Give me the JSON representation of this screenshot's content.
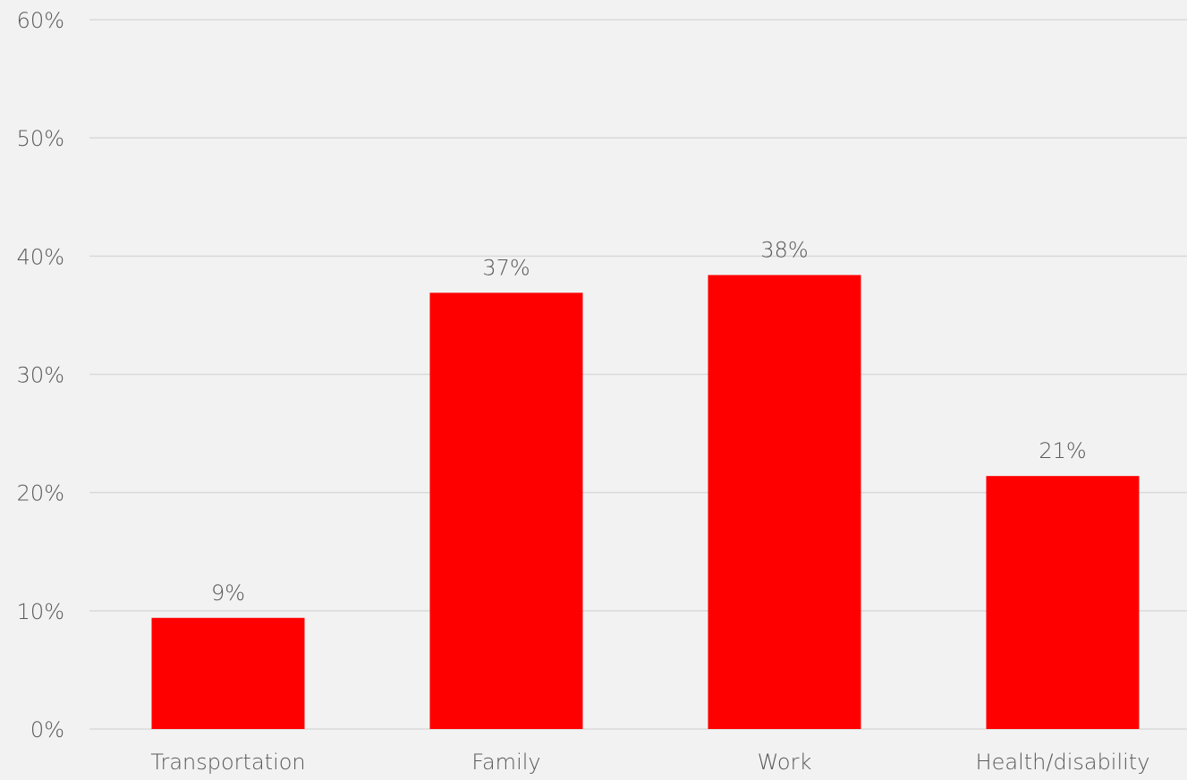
{
  "chart_data": {
    "type": "bar",
    "categories": [
      "Transportation",
      "Family",
      "Work",
      "Health/disability"
    ],
    "values": [
      9.4,
      36.9,
      38.4,
      21.4
    ],
    "data_labels": [
      "9%",
      "37%",
      "38%",
      "21%"
    ],
    "ylim": [
      0,
      60
    ],
    "y_ticks": [
      0,
      10,
      20,
      30,
      40,
      50,
      60
    ],
    "y_tick_labels": [
      "0%",
      "10%",
      "20%",
      "30%",
      "40%",
      "50%",
      "60%"
    ],
    "grid": true,
    "legend": "none",
    "bar_color": "#ff0000",
    "grid_color": "#d9d9d9",
    "background_color": "#f2f2f2",
    "text_color": "#595959"
  }
}
